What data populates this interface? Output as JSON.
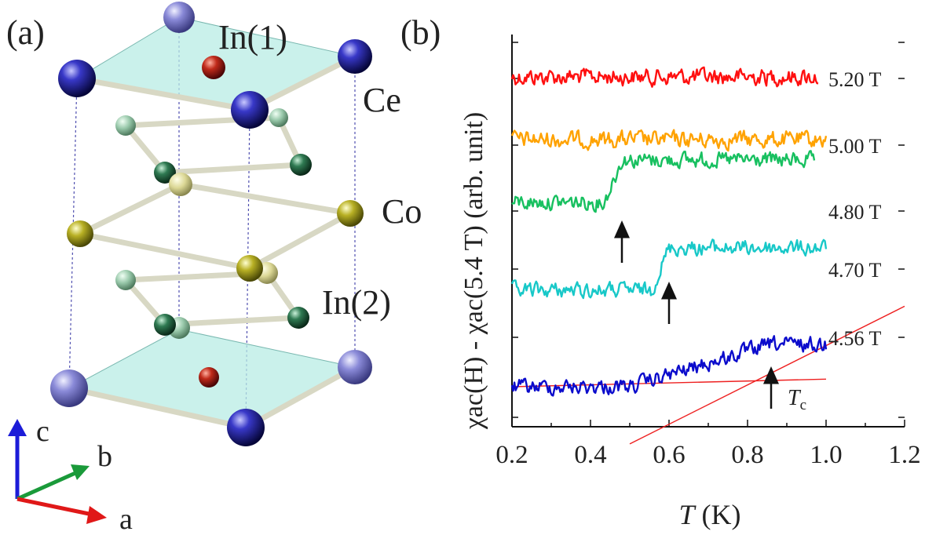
{
  "panel_a": {
    "label": "(a)",
    "atoms": {
      "in1": "In(1)",
      "ce": "Ce",
      "co": "Co",
      "in2": "In(2)"
    },
    "axes": {
      "c": "c",
      "b": "b",
      "a": "a"
    },
    "colors": {
      "ce": "#1a1a8c",
      "in1": "#a01818",
      "co": "#b8b020",
      "in2": "#2e6e4a",
      "plane": "#b8ece4",
      "axis_c": "#1c1cd8",
      "axis_b": "#1a9a3a",
      "axis_a": "#e01818"
    }
  },
  "panel_b": {
    "label": "(b)"
  },
  "chart_data": {
    "type": "line",
    "xlabel_var": "T",
    "xlabel_unit": " (K)",
    "ylabel": "χac(H) - χac(5.4 T)  (arb. unit)",
    "xlim": [
      0.2,
      1.2
    ],
    "xticks": [
      "0.2",
      "0.4",
      "0.6",
      "0.8",
      "1.0",
      "1.2"
    ],
    "y_tick_labels": "none",
    "grid": false,
    "series": [
      {
        "name": "5.20 T",
        "color": "#ff1010",
        "x_range": [
          0.2,
          0.98
        ],
        "trend": "flat",
        "noise": 0.55
      },
      {
        "name": "5.00 T",
        "color": "#ffa200",
        "x_range": [
          0.2,
          1.0
        ],
        "trend": "flat",
        "noise": 0.55
      },
      {
        "name": "4.80 T",
        "color": "#18c060",
        "x_range": [
          0.2,
          0.97
        ],
        "transition_T": 0.48,
        "noise": 0.5
      },
      {
        "name": "4.70 T",
        "color": "#18c8c8",
        "x_range": [
          0.2,
          1.0
        ],
        "transition_T": 0.6,
        "noise": 0.5
      },
      {
        "name": "4.56 T",
        "color": "#0c0ccc",
        "x_range": [
          0.2,
          1.0
        ],
        "transition_T": 0.86,
        "noise": 0.5
      }
    ],
    "annotations": {
      "arrows_at_T": [
        0.48,
        0.6,
        0.86
      ],
      "tc_label_main": "T",
      "tc_label_sub": "c",
      "fit_lines_color": "#ee2020",
      "fit_lines": [
        {
          "x": [
            0.2,
            1.0
          ],
          "y_trace_units": [
            0.0,
            0.18
          ]
        },
        {
          "x": [
            0.5,
            1.2
          ],
          "y_trace_units": [
            -1.35,
            1.9
          ]
        }
      ]
    }
  }
}
